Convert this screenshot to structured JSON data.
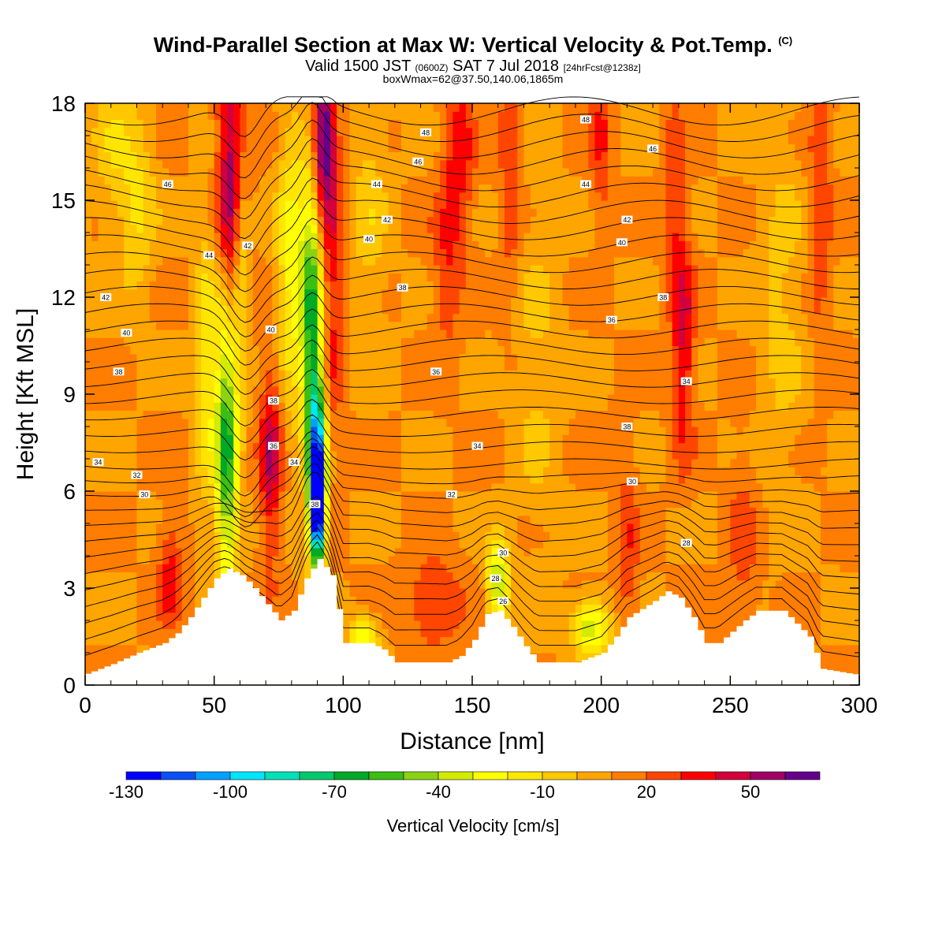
{
  "title": {
    "main": "Wind-Parallel Section at Max W: Vertical Velocity & Pot.Temp.",
    "copyright": "(C)",
    "valid_prefix": "Valid 1500 JST",
    "valid_utc": "(0600Z)",
    "valid_date": "SAT 7 Jul 2018",
    "forecast": "[24hrFcst@1238z]",
    "boxwmax": "boxWmax=62@37.50,140.06,1865m"
  },
  "chart_data": {
    "type": "heatmap",
    "xlabel": "Distance [nm]",
    "ylabel": "Height [Kft MSL]",
    "xlim": [
      0,
      300
    ],
    "ylim": [
      0,
      18
    ],
    "x_ticks": [
      0,
      50,
      100,
      150,
      200,
      250,
      300
    ],
    "y_ticks": [
      0,
      3,
      6,
      9,
      12,
      15,
      18
    ],
    "background_w": 10,
    "terrain": [
      [
        0,
        0.35
      ],
      [
        10,
        0.65
      ],
      [
        20,
        1.0
      ],
      [
        30,
        1.3
      ],
      [
        35,
        1.6
      ],
      [
        40,
        2.1
      ],
      [
        45,
        2.7
      ],
      [
        50,
        3.3
      ],
      [
        55,
        3.6
      ],
      [
        60,
        3.4
      ],
      [
        65,
        3.0
      ],
      [
        70,
        2.5
      ],
      [
        75,
        2.0
      ],
      [
        80,
        2.3
      ],
      [
        85,
        3.3
      ],
      [
        90,
        3.9
      ],
      [
        95,
        3.4
      ],
      [
        100,
        1.3
      ],
      [
        110,
        1.3
      ],
      [
        115,
        1.1
      ],
      [
        120,
        0.7
      ],
      [
        140,
        0.7
      ],
      [
        145,
        0.9
      ],
      [
        150,
        1.4
      ],
      [
        155,
        2.2
      ],
      [
        160,
        2.3
      ],
      [
        165,
        1.8
      ],
      [
        170,
        1.2
      ],
      [
        175,
        0.7
      ],
      [
        190,
        0.7
      ],
      [
        200,
        1.0
      ],
      [
        205,
        1.5
      ],
      [
        210,
        2.1
      ],
      [
        220,
        2.6
      ],
      [
        225,
        2.9
      ],
      [
        230,
        2.7
      ],
      [
        235,
        2.1
      ],
      [
        240,
        1.3
      ],
      [
        245,
        1.3
      ],
      [
        255,
        2.0
      ],
      [
        260,
        2.3
      ],
      [
        270,
        2.3
      ],
      [
        280,
        1.5
      ],
      [
        285,
        0.5
      ],
      [
        300,
        0.3
      ]
    ],
    "w_features": [
      {
        "x": 57,
        "z": 16.0,
        "value": 40,
        "sx": 4,
        "sz": 3.5
      },
      {
        "x": 57,
        "z": 12.5,
        "value": 32,
        "sx": 3.5,
        "sz": 3.5
      },
      {
        "x": 72,
        "z": 7.0,
        "value": 38,
        "sx": 3,
        "sz": 2.2
      },
      {
        "x": 92,
        "z": 17.0,
        "value": 55,
        "sx": 3,
        "sz": 1.5
      },
      {
        "x": 95,
        "z": 13.0,
        "value": 28,
        "sx": 3.5,
        "sz": 4
      },
      {
        "x": 55,
        "z": 8.0,
        "value": -85,
        "sx": 3,
        "sz": 3.5
      },
      {
        "x": 60,
        "z": 13.0,
        "value": -45,
        "sx": 2.5,
        "sz": 3
      },
      {
        "x": 88,
        "z": 11.5,
        "value": -70,
        "sx": 3,
        "sz": 3
      },
      {
        "x": 90,
        "z": 7.0,
        "value": -90,
        "sx": 2.5,
        "sz": 2
      },
      {
        "x": 90,
        "z": 5.5,
        "value": -120,
        "sx": 2,
        "sz": 1.2
      },
      {
        "x": 80,
        "z": 13.0,
        "value": -35,
        "sx": 4,
        "sz": 3
      },
      {
        "x": 145,
        "z": 16.5,
        "value": 25,
        "sx": 4,
        "sz": 2
      },
      {
        "x": 140,
        "z": 13.0,
        "value": 18,
        "sx": 4,
        "sz": 2
      },
      {
        "x": 160,
        "z": 3.2,
        "value": -55,
        "sx": 3,
        "sz": 0.9
      },
      {
        "x": 196,
        "z": 1.8,
        "value": -50,
        "sx": 5,
        "sz": 0.6
      },
      {
        "x": 232,
        "z": 10.5,
        "value": 32,
        "sx": 3,
        "sz": 2.5
      },
      {
        "x": 228,
        "z": 15.0,
        "value": 18,
        "sx": 3,
        "sz": 2.5
      },
      {
        "x": 33,
        "z": 3.5,
        "value": 25,
        "sx": 3.5,
        "sz": 1.2
      },
      {
        "x": 135,
        "z": 2.5,
        "value": 22,
        "sx": 8,
        "sz": 1.0
      },
      {
        "x": 108,
        "z": 1.5,
        "value": -38,
        "sx": 4,
        "sz": 0.5
      },
      {
        "x": 165,
        "z": 16.5,
        "value": 22,
        "sx": 3,
        "sz": 3
      },
      {
        "x": 200,
        "z": 17.0,
        "value": 20,
        "sx": 3,
        "sz": 2
      },
      {
        "x": 10,
        "z": 17.0,
        "value": -15,
        "sx": 5,
        "sz": 2
      },
      {
        "x": 20,
        "z": 15.0,
        "value": -22,
        "sx": 5,
        "sz": 2
      },
      {
        "x": 47,
        "z": 10.0,
        "value": -28,
        "sx": 3,
        "sz": 3
      },
      {
        "x": 175,
        "z": 10.0,
        "value": -12,
        "sx": 6,
        "sz": 4
      },
      {
        "x": 110,
        "z": 15.0,
        "value": -15,
        "sx": 5,
        "sz": 3
      },
      {
        "x": 270,
        "z": 12.0,
        "value": -14,
        "sx": 6,
        "sz": 4
      },
      {
        "x": 285,
        "z": 15.0,
        "value": 20,
        "sx": 3,
        "sz": 3
      },
      {
        "x": 210,
        "z": 4.0,
        "value": 18,
        "sx": 3,
        "sz": 2.5
      },
      {
        "x": 255,
        "z": 4.0,
        "value": 15,
        "sx": 4,
        "sz": 2.5
      }
    ],
    "contour_labels": [
      {
        "x": 32,
        "z": 15.5,
        "text": "46"
      },
      {
        "x": 48,
        "z": 13.3,
        "text": "44"
      },
      {
        "x": 63,
        "z": 13.6,
        "text": "42"
      },
      {
        "x": 8,
        "z": 12.0,
        "text": "42"
      },
      {
        "x": 16,
        "z": 10.9,
        "text": "40"
      },
      {
        "x": 13,
        "z": 9.7,
        "text": "38"
      },
      {
        "x": 5,
        "z": 6.9,
        "text": "34"
      },
      {
        "x": 20,
        "z": 6.5,
        "text": "32"
      },
      {
        "x": 23,
        "z": 5.9,
        "text": "30"
      },
      {
        "x": 72,
        "z": 11.0,
        "text": "40"
      },
      {
        "x": 73,
        "z": 8.8,
        "text": "38"
      },
      {
        "x": 73,
        "z": 7.4,
        "text": "36"
      },
      {
        "x": 81,
        "z": 6.9,
        "text": "34"
      },
      {
        "x": 89,
        "z": 5.6,
        "text": "38"
      },
      {
        "x": 132,
        "z": 17.1,
        "text": "48"
      },
      {
        "x": 129,
        "z": 16.2,
        "text": "46"
      },
      {
        "x": 113,
        "z": 15.5,
        "text": "44"
      },
      {
        "x": 117,
        "z": 14.4,
        "text": "42"
      },
      {
        "x": 110,
        "z": 13.8,
        "text": "40"
      },
      {
        "x": 123,
        "z": 12.3,
        "text": "38"
      },
      {
        "x": 136,
        "z": 9.7,
        "text": "36"
      },
      {
        "x": 152,
        "z": 7.4,
        "text": "34"
      },
      {
        "x": 142,
        "z": 5.9,
        "text": "32"
      },
      {
        "x": 162,
        "z": 4.1,
        "text": "30"
      },
      {
        "x": 159,
        "z": 3.3,
        "text": "28"
      },
      {
        "x": 162,
        "z": 2.6,
        "text": "26"
      },
      {
        "x": 194,
        "z": 17.5,
        "text": "48"
      },
      {
        "x": 220,
        "z": 16.6,
        "text": "46"
      },
      {
        "x": 194,
        "z": 15.5,
        "text": "44"
      },
      {
        "x": 210,
        "z": 14.4,
        "text": "42"
      },
      {
        "x": 208,
        "z": 13.7,
        "text": "40"
      },
      {
        "x": 224,
        "z": 12.0,
        "text": "38"
      },
      {
        "x": 204,
        "z": 11.3,
        "text": "36"
      },
      {
        "x": 233,
        "z": 9.4,
        "text": "34"
      },
      {
        "x": 210,
        "z": 8.0,
        "text": "38"
      },
      {
        "x": 212,
        "z": 6.3,
        "text": "30"
      },
      {
        "x": 233,
        "z": 4.4,
        "text": "28"
      }
    ],
    "colorbar": {
      "label": "Vertical Velocity [cm/s]",
      "tick_labels": [
        "-130",
        "-100",
        "-70",
        "-40",
        "-10",
        "20",
        "50"
      ],
      "levels": [
        -130,
        -120,
        -110,
        -100,
        -90,
        -80,
        -70,
        -60,
        -50,
        -40,
        -30,
        -20,
        -10,
        0,
        10,
        20,
        30,
        40,
        50,
        60,
        70
      ],
      "colors": [
        "#0000ff",
        "#0a50f5",
        "#00a0ff",
        "#00e5ff",
        "#00e0b8",
        "#00c86e",
        "#00aa28",
        "#3cbe14",
        "#8cd214",
        "#d2eb00",
        "#ffff00",
        "#ffe600",
        "#ffc800",
        "#ffa500",
        "#ff7d00",
        "#ff4600",
        "#ff0000",
        "#d2003c",
        "#a00064",
        "#64008c"
      ]
    }
  }
}
